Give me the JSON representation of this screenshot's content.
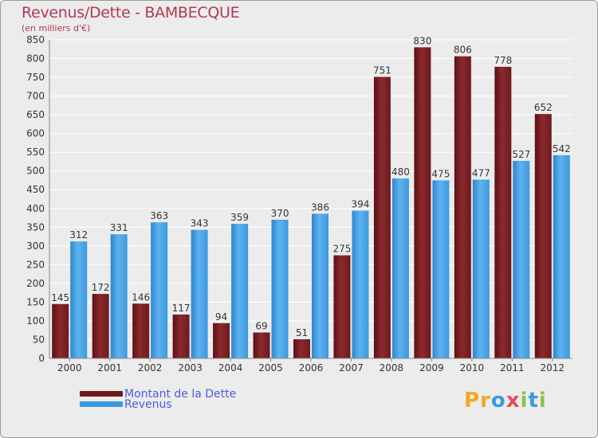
{
  "header": {
    "title": "Revenus/Dette - BAMBECQUE",
    "subtitle": "(en milliers d'€)"
  },
  "colors": {
    "debt": "#7a1f22",
    "revenue": "#3a9ae0",
    "title": "#b03a52",
    "legend_text": "#4a5be0"
  },
  "chart_data": {
    "type": "bar",
    "title": "Revenus/Dette - BAMBECQUE",
    "subtitle": "(en milliers d'€)",
    "categories": [
      "2000",
      "2001",
      "2002",
      "2003",
      "2004",
      "2005",
      "2006",
      "2007",
      "2008",
      "2009",
      "2010",
      "2011",
      "2012"
    ],
    "series": [
      {
        "name": "Montant de la Dette",
        "values": [
          145,
          172,
          146,
          117,
          94,
          69,
          51,
          275,
          751,
          830,
          806,
          778,
          652
        ]
      },
      {
        "name": "Revenus",
        "values": [
          312,
          331,
          363,
          343,
          359,
          370,
          386,
          394,
          480,
          475,
          477,
          527,
          542
        ]
      }
    ],
    "ylim": [
      0,
      850
    ],
    "yticks": [
      0,
      50,
      100,
      150,
      200,
      250,
      300,
      350,
      400,
      450,
      500,
      550,
      600,
      650,
      700,
      750,
      800,
      850
    ],
    "grid": true,
    "legend_position": "bottom-left"
  },
  "legend": {
    "items": [
      {
        "label": "Montant de la Dette"
      },
      {
        "label": "Revenus"
      }
    ]
  },
  "logo": {
    "letters": [
      "P",
      "r",
      "o",
      "x",
      "i",
      "t",
      "i"
    ],
    "colors": [
      "#f5a623",
      "#f5a623",
      "#3a9ae0",
      "#e94b5a",
      "#8bc34a",
      "#3a9ae0",
      "#8bc34a"
    ]
  }
}
